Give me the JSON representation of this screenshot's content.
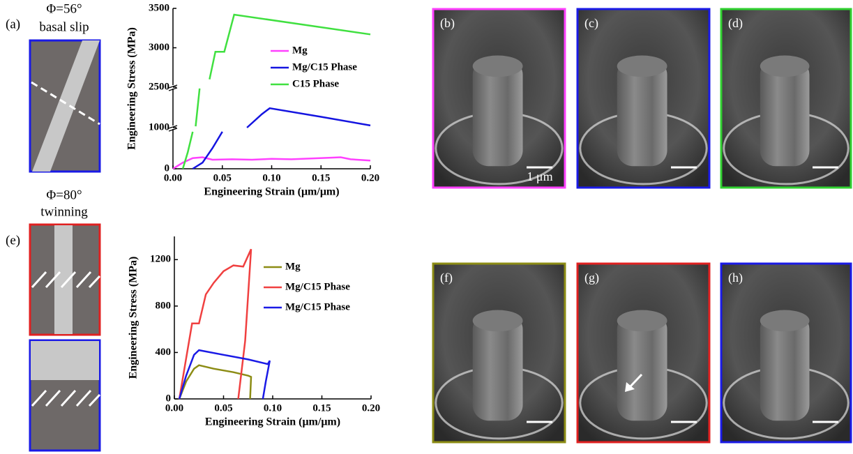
{
  "figure": {
    "panel_a": "(a)",
    "angle_a": "Φ=56°",
    "mode_a": "basal slip",
    "panel_e": "(e)",
    "angle_e": "Φ=80°",
    "mode_e": "twinning",
    "images": [
      "(b)",
      "(c)",
      "(d)",
      "(f)",
      "(g)",
      "(h)"
    ],
    "scale_bar": "1 μm"
  },
  "chart_data": [
    {
      "type": "line",
      "xlabel": "Engineering Strain (μm/μm)",
      "ylabel": "Engineering Stress (MPa)",
      "xlim": [
        0,
        0.2
      ],
      "xticks": [
        {
          "value": 0,
          "label": "0.00"
        },
        0.05,
        {
          "value": 0.1,
          "label": "0.10"
        },
        0.15,
        {
          "value": 0.2,
          "label": "0.20"
        }
      ],
      "ylim": [
        0,
        3500
      ],
      "ysegments": [
        [
          0,
          1000
        ],
        [
          1000,
          2500
        ],
        [
          2500,
          3500
        ]
      ],
      "yticks": [
        0,
        1000,
        2500,
        3000,
        3500
      ],
      "series": [
        {
          "name": "Mg",
          "color": "#ff40ff",
          "x": [
            0,
            0.01,
            0.02,
            0.03,
            0.04,
            0.06,
            0.08,
            0.1,
            0.12,
            0.14,
            0.16,
            0.17,
            0.18,
            0.2
          ],
          "values": [
            0,
            150,
            260,
            280,
            220,
            230,
            220,
            240,
            230,
            250,
            270,
            280,
            230,
            200
          ]
        },
        {
          "name": "Mg/C15 Phase",
          "color": "#1414e0",
          "x": [
            0.02,
            0.03,
            0.04,
            0.05,
            0.06,
            0.075,
            0.09,
            0.098,
            0.15,
            0.2
          ],
          "values": [
            0,
            150,
            500,
            900,
            null,
            1000,
            1500,
            1720,
            1400,
            1080
          ]
        },
        {
          "name": "C15 Phase",
          "color": "#40e040",
          "x": [
            0.01,
            0.015,
            0.02,
            0.021,
            0.023,
            0.027,
            0.03,
            0.037,
            0.043,
            0.048,
            0.052,
            0.062,
            0.2
          ],
          "values": [
            0,
            400,
            900,
            null,
            1050,
            2450,
            null,
            2600,
            2950,
            2950,
            2950,
            3420,
            3170
          ]
        }
      ]
    },
    {
      "type": "line",
      "xlabel": "Engineering Strain (μm/μm)",
      "ylabel": "Engineering Stress (MPa)",
      "xlim": [
        0,
        0.2
      ],
      "xticks": [
        {
          "value": 0,
          "label": "0.00"
        },
        0.05,
        {
          "value": 0.1,
          "label": "0.10"
        },
        0.15,
        {
          "value": 0.2,
          "label": "0.20"
        }
      ],
      "ylim": [
        0,
        1400
      ],
      "yticks": [
        0,
        400,
        800,
        1200
      ],
      "series": [
        {
          "name": "Mg",
          "color": "#8c8c14",
          "x": [
            0.005,
            0.012,
            0.02,
            0.025,
            0.04,
            0.06,
            0.075,
            0.078,
            0.077
          ],
          "values": [
            0,
            150,
            260,
            290,
            260,
            230,
            200,
            190,
            0
          ]
        },
        {
          "name": "Mg/C15 Phase",
          "color": "#f04040",
          "x": [
            0.005,
            0.012,
            0.018,
            0.025,
            0.032,
            0.04,
            0.05,
            0.06,
            0.07,
            0.078,
            0.072,
            0.065
          ],
          "values": [
            0,
            350,
            650,
            650,
            900,
            1000,
            1100,
            1150,
            1140,
            1290,
            500,
            0
          ]
        },
        {
          "name": "Mg/C15 Phase",
          "color": "#1a1ae6",
          "x": [
            0.005,
            0.012,
            0.02,
            0.025,
            0.05,
            0.075,
            0.095,
            0.097,
            0.093,
            0.09
          ],
          "values": [
            0,
            200,
            380,
            420,
            380,
            340,
            300,
            330,
            150,
            0
          ]
        }
      ]
    }
  ]
}
